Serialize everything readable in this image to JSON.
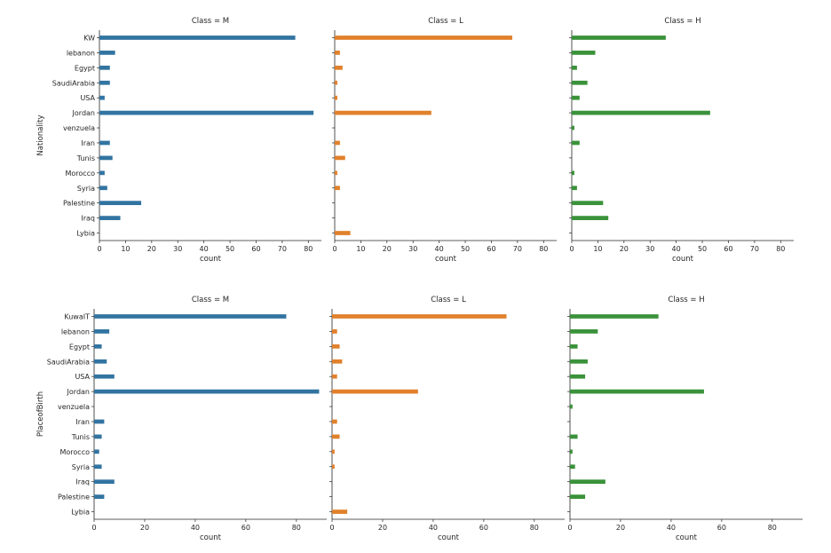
{
  "chart_data": [
    {
      "type": "bar",
      "orientation": "horizontal",
      "ylabel": "Nationality",
      "xlabel": "count",
      "xlim": [
        0,
        85
      ],
      "xticks": [
        "0",
        "10",
        "20",
        "30",
        "40",
        "50",
        "60",
        "70",
        "80"
      ],
      "categories": [
        "KW",
        "lebanon",
        "Egypt",
        "SaudiArabia",
        "USA",
        "Jordan",
        "venzuela",
        "Iran",
        "Tunis",
        "Morocco",
        "Syria",
        "Palestine",
        "Iraq",
        "Lybia"
      ],
      "panels": [
        {
          "title": "Class = M",
          "color": "#3274a1",
          "values": [
            75,
            6,
            4,
            4,
            2,
            82,
            0,
            4,
            5,
            2,
            3,
            16,
            8,
            0
          ]
        },
        {
          "title": "Class = L",
          "color": "#e1812c",
          "values": [
            68,
            2,
            3,
            1,
            1,
            37,
            0,
            2,
            4,
            1,
            2,
            0,
            0,
            6
          ]
        },
        {
          "title": "Class = H",
          "color": "#3a923a",
          "values": [
            36,
            9,
            2,
            6,
            3,
            53,
            1,
            3,
            0,
            1,
            2,
            12,
            14,
            0
          ]
        }
      ]
    },
    {
      "type": "bar",
      "orientation": "horizontal",
      "ylabel": "PlaceofBirth",
      "xlabel": "count",
      "xlim": [
        0,
        92
      ],
      "xticks": [
        "0",
        "20",
        "40",
        "60",
        "80"
      ],
      "categories": [
        "KuwaIT",
        "lebanon",
        "Egypt",
        "SaudiArabia",
        "USA",
        "Jordan",
        "venzuela",
        "Iran",
        "Tunis",
        "Morocco",
        "Syria",
        "Iraq",
        "Palestine",
        "Lybia"
      ],
      "panels": [
        {
          "title": "Class = M",
          "color": "#3274a1",
          "values": [
            76,
            6,
            3,
            5,
            8,
            89,
            0,
            4,
            3,
            2,
            3,
            8,
            4,
            0
          ]
        },
        {
          "title": "Class = L",
          "color": "#e1812c",
          "values": [
            69,
            2,
            3,
            4,
            2,
            34,
            0,
            2,
            3,
            1,
            1,
            0,
            0,
            6
          ]
        },
        {
          "title": "Class = H",
          "color": "#3a923a",
          "values": [
            35,
            11,
            3,
            7,
            6,
            53,
            1,
            0,
            3,
            1,
            2,
            14,
            6,
            0
          ]
        }
      ]
    }
  ]
}
